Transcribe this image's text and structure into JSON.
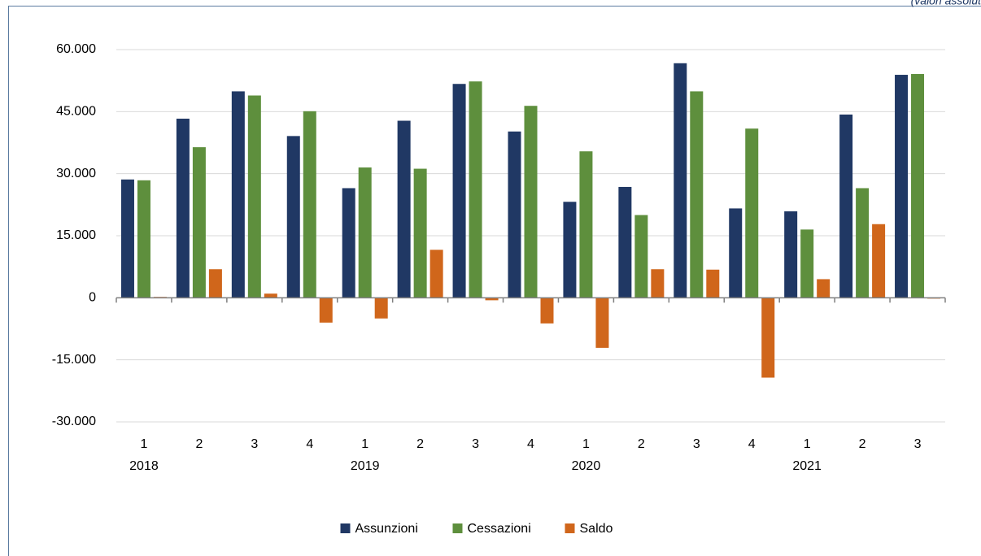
{
  "chart_data": {
    "type": "bar",
    "note": "(valori assolut",
    "categories": [
      "1",
      "2",
      "3",
      "4",
      "1",
      "2",
      "3",
      "4",
      "1",
      "2",
      "3",
      "4",
      "1",
      "2",
      "3"
    ],
    "year_labels": [
      "2018",
      null,
      null,
      null,
      "2019",
      null,
      null,
      null,
      "2020",
      null,
      null,
      null,
      "2021",
      null,
      null
    ],
    "series": [
      {
        "name": "Assunzioni",
        "color": "#203864",
        "values": [
          28600,
          43300,
          49900,
          39100,
          26500,
          42800,
          51700,
          40200,
          23200,
          26800,
          56700,
          21600,
          20900,
          44300,
          53900
        ]
      },
      {
        "name": "Cessazioni",
        "color": "#5e8f3d",
        "values": [
          28400,
          36400,
          48900,
          45100,
          31500,
          31200,
          52300,
          46400,
          35400,
          20000,
          49900,
          40900,
          16500,
          26500,
          54100
        ]
      },
      {
        "name": "Saldo",
        "color": "#d0661b",
        "values": [
          200,
          6900,
          1000,
          -6000,
          -5000,
          11600,
          -600,
          -6200,
          -12100,
          6900,
          6800,
          -19300,
          4500,
          17800,
          -200
        ]
      }
    ],
    "ylim": [
      -30000,
      60000
    ],
    "yticks": [
      {
        "value": -30000,
        "label": "-30.000"
      },
      {
        "value": -15000,
        "label": "-15.000"
      },
      0,
      {
        "value": 15000,
        "label": "15.000"
      },
      {
        "value": 30000,
        "label": "30.000"
      },
      {
        "value": 45000,
        "label": "45.000"
      },
      {
        "value": 60000,
        "label": "60.000"
      }
    ],
    "grid": true,
    "legend": "bottom"
  }
}
